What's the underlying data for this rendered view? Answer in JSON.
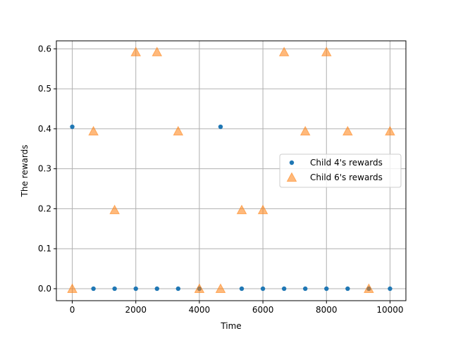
{
  "chart_data": {
    "type": "scatter",
    "title": "",
    "xlabel": "Time",
    "ylabel": "The rewards",
    "xlim": [
      -500,
      10500
    ],
    "ylim": [
      -0.03,
      0.62
    ],
    "x_ticks": [
      0,
      2000,
      4000,
      6000,
      8000,
      10000
    ],
    "x_tick_labels": [
      "0",
      "2000",
      "4000",
      "6000",
      "8000",
      "10000"
    ],
    "y_ticks": [
      0.0,
      0.1,
      0.2,
      0.3,
      0.4,
      0.5,
      0.6
    ],
    "y_tick_labels": [
      "0.0",
      "0.1",
      "0.2",
      "0.3",
      "0.4",
      "0.5",
      "0.6"
    ],
    "grid": true,
    "legend_position": "center-right",
    "series": [
      {
        "name": "Child 4's rewards",
        "marker": "circle",
        "color": "#1f77b4",
        "x": [
          0,
          667,
          1333,
          2000,
          2667,
          3333,
          4000,
          4667,
          5333,
          6000,
          6667,
          7333,
          8000,
          8667,
          9333,
          10000
        ],
        "y": [
          0.405,
          0.0,
          0.0,
          0.0,
          0.0,
          0.0,
          0.0,
          0.405,
          0.0,
          0.0,
          0.0,
          0.0,
          0.0,
          0.0,
          0.0,
          0.0
        ]
      },
      {
        "name": "Child 6's rewards",
        "marker": "triangle",
        "color": "#ff7f0e",
        "x": [
          0,
          667,
          1333,
          2000,
          2667,
          3333,
          4000,
          4667,
          5333,
          6000,
          6667,
          7333,
          8000,
          8667,
          9333,
          10000
        ],
        "y": [
          0.0,
          0.394,
          0.197,
          0.592,
          0.592,
          0.394,
          0.0,
          0.0,
          0.197,
          0.197,
          0.592,
          0.394,
          0.592,
          0.394,
          0.0,
          0.394
        ]
      }
    ]
  }
}
